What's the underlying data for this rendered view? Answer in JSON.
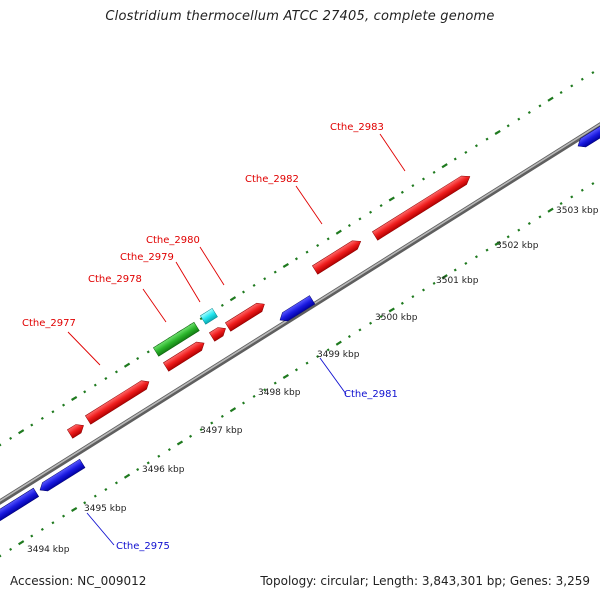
{
  "title": "Clostridium thermocellum ATCC 27405, complete genome",
  "footer": {
    "accession": "Accession: NC_009012",
    "summary": "Topology: circular; Length: 3,843,301 bp; Genes: 3,259"
  },
  "colors": {
    "backbone": "#8a8a8a",
    "tick": "#1f7a1f",
    "label_top": "#e00000",
    "label_bottom": "#1010d0",
    "gene_red": "#ee1c1c",
    "gene_blue": "#1a1ae0",
    "gene_green": "#2bb52b",
    "gene_cyan": "#22e6f0"
  },
  "kbp_labels": [
    "3494 kbp",
    "3495 kbp",
    "3496 kbp",
    "3497 kbp",
    "3498 kbp",
    "3499 kbp",
    "3500 kbp",
    "3501 kbp",
    "3502 kbp",
    "3503 kbp"
  ],
  "gene_labels": [
    "Cthe_2977",
    "Cthe_2978",
    "Cthe_2979",
    "Cthe_2980",
    "Cthe_2982",
    "Cthe_2983",
    "Cthe_2981",
    "Cthe_2975"
  ]
}
